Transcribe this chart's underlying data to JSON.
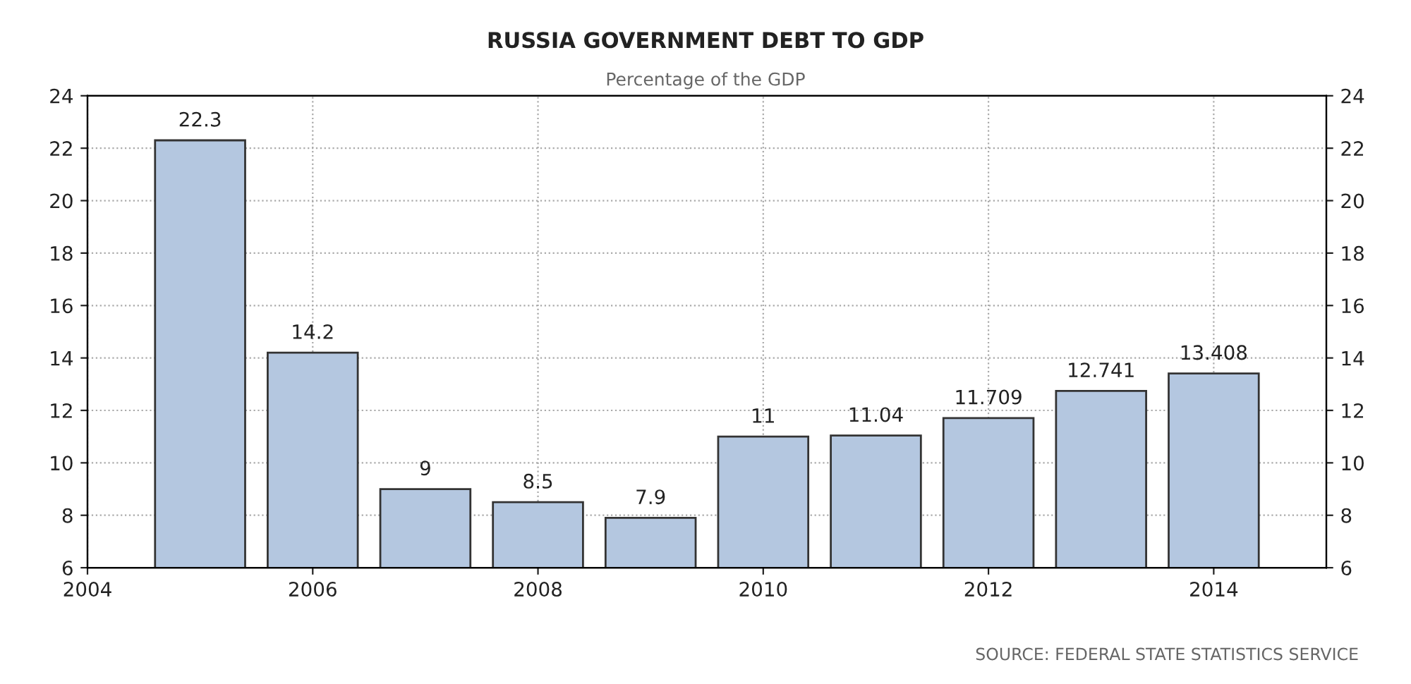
{
  "chart_data": {
    "type": "bar",
    "title": "RUSSIA GOVERNMENT DEBT TO GDP",
    "subtitle": "Percentage of the GDP",
    "x": [
      2005,
      2006,
      2007,
      2008,
      2009,
      2010,
      2011,
      2012,
      2013,
      2014
    ],
    "values": [
      22.3,
      14.2,
      9,
      8.5,
      7.9,
      11,
      11.04,
      11.709,
      12.741,
      13.408
    ],
    "color": "#b4c7e0",
    "data_labels": true,
    "xlim": [
      2004,
      2015
    ],
    "xticks": [
      2004,
      2006,
      2008,
      2010,
      2012,
      2014
    ],
    "ylim": [
      6,
      24
    ],
    "yticks": [
      6,
      8,
      10,
      12,
      14,
      16,
      18,
      20,
      22,
      24
    ],
    "y2lim": [
      6,
      24
    ],
    "y2ticks": [
      6,
      8,
      10,
      12,
      14,
      16,
      18,
      20,
      22,
      24
    ],
    "grid": true,
    "legend": false,
    "annotations": [
      "SOURCE: FEDERAL STATE STATISTICS SERVICE"
    ]
  }
}
